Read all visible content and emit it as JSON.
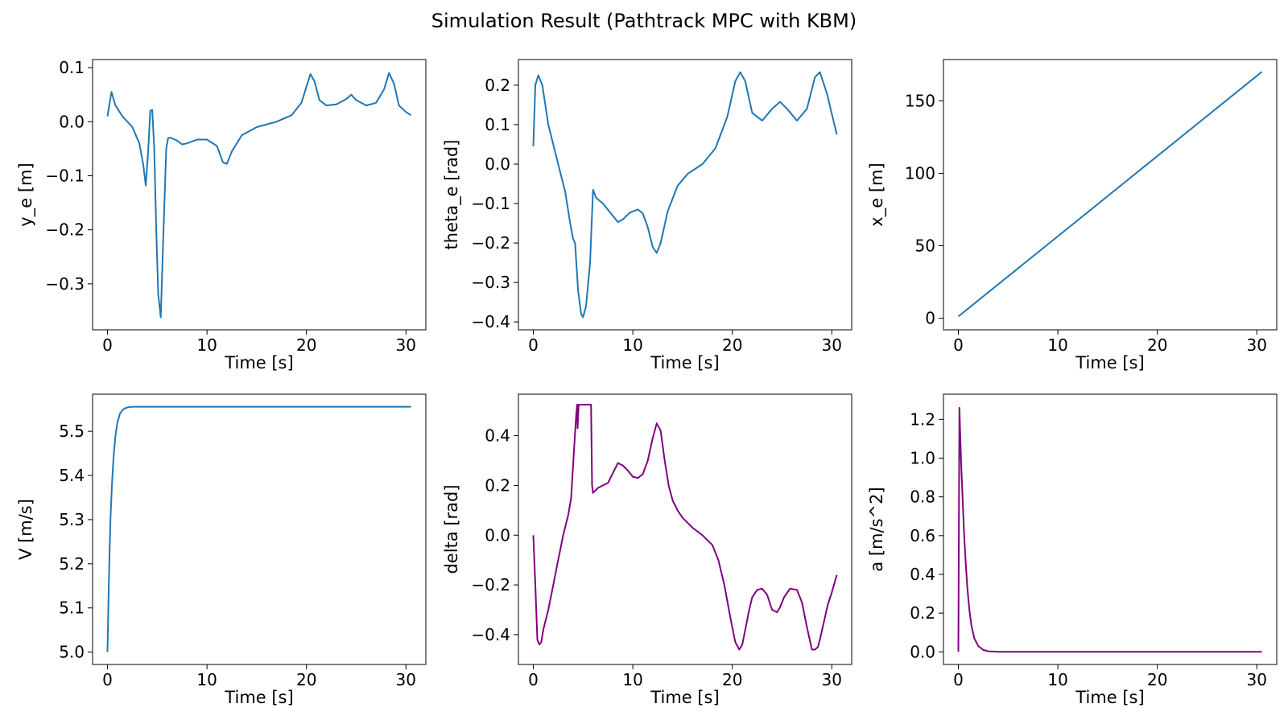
{
  "figure": {
    "title": "Simulation Result (Pathtrack MPC with KBM)"
  },
  "chart_data": [
    {
      "type": "line",
      "xlabel": "Time [s]",
      "ylabel": "y_e [m]",
      "xlim": [
        -1.5,
        32.0
      ],
      "ylim": [
        -0.385,
        0.115
      ],
      "xticks": [
        0,
        10,
        20,
        30
      ],
      "yticks": [
        0.1,
        0.0,
        -0.1,
        -0.2,
        -0.3
      ],
      "ytick_labels": [
        "0.1",
        "0.0",
        "−0.1",
        "−0.2",
        "−0.3"
      ],
      "color": "#1f77b4",
      "grid": false,
      "x": [
        0,
        0.4,
        0.8,
        1.5,
        2.5,
        3.2,
        3.6,
        3.85,
        4.1,
        4.3,
        4.5,
        4.7,
        4.9,
        5.1,
        5.35,
        5.6,
        5.9,
        6.1,
        6.4,
        7.0,
        7.5,
        8.0,
        9.0,
        10.0,
        11.0,
        11.6,
        12.0,
        12.5,
        13.5,
        15.0,
        17.0,
        18.5,
        19.5,
        20.0,
        20.4,
        20.8,
        21.3,
        22.0,
        23.0,
        24.0,
        24.5,
        25.0,
        26.0,
        27.0,
        27.8,
        28.3,
        28.8,
        29.3,
        30.0,
        30.5
      ],
      "values": [
        0.01,
        0.055,
        0.03,
        0.01,
        -0.01,
        -0.04,
        -0.08,
        -0.118,
        -0.05,
        0.02,
        0.022,
        -0.05,
        -0.2,
        -0.32,
        -0.362,
        -0.22,
        -0.05,
        -0.03,
        -0.03,
        -0.035,
        -0.042,
        -0.04,
        -0.033,
        -0.033,
        -0.045,
        -0.075,
        -0.078,
        -0.055,
        -0.025,
        -0.01,
        0.0,
        0.012,
        0.035,
        0.065,
        0.088,
        0.075,
        0.04,
        0.03,
        0.032,
        0.042,
        0.05,
        0.04,
        0.03,
        0.035,
        0.06,
        0.09,
        0.07,
        0.03,
        0.018,
        0.012
      ]
    },
    {
      "type": "line",
      "xlabel": "Time [s]",
      "ylabel": "theta_e [rad]",
      "xlim": [
        -1.5,
        32.0
      ],
      "ylim": [
        -0.42,
        0.265
      ],
      "xticks": [
        0,
        10,
        20,
        30
      ],
      "yticks": [
        0.2,
        0.1,
        0.0,
        -0.1,
        -0.2,
        -0.3,
        -0.4
      ],
      "ytick_labels": [
        "0.2",
        "0.1",
        "0.0",
        "−0.1",
        "−0.2",
        "−0.3",
        "−0.4"
      ],
      "color": "#1f77b4",
      "grid": false,
      "x": [
        0,
        0.2,
        0.5,
        0.9,
        1.5,
        2.5,
        3.2,
        3.7,
        4.0,
        4.2,
        4.5,
        4.8,
        5.0,
        5.3,
        5.7,
        6.0,
        6.3,
        7.0,
        7.8,
        8.5,
        9.0,
        9.7,
        10.5,
        11.0,
        11.5,
        12.0,
        12.4,
        12.8,
        13.5,
        14.5,
        15.5,
        17.0,
        18.3,
        19.5,
        20.3,
        20.8,
        21.3,
        22.0,
        23.0,
        24.0,
        24.8,
        25.5,
        26.5,
        27.5,
        28.3,
        28.8,
        29.5,
        30.5
      ],
      "values": [
        0.045,
        0.2,
        0.225,
        0.2,
        0.1,
        0.0,
        -0.07,
        -0.15,
        -0.19,
        -0.2,
        -0.32,
        -0.38,
        -0.388,
        -0.36,
        -0.25,
        -0.065,
        -0.085,
        -0.1,
        -0.125,
        -0.147,
        -0.14,
        -0.123,
        -0.115,
        -0.125,
        -0.16,
        -0.21,
        -0.225,
        -0.2,
        -0.12,
        -0.055,
        -0.025,
        0.0,
        0.04,
        0.12,
        0.21,
        0.233,
        0.21,
        0.13,
        0.11,
        0.14,
        0.158,
        0.14,
        0.11,
        0.14,
        0.22,
        0.233,
        0.18,
        0.075
      ]
    },
    {
      "type": "line",
      "xlabel": "Time [s]",
      "ylabel": "x_e [m]",
      "xlim": [
        -1.5,
        32.0
      ],
      "ylim": [
        -8.0,
        178.5
      ],
      "xticks": [
        0,
        10,
        20,
        30
      ],
      "yticks": [
        150,
        100,
        50,
        0
      ],
      "ytick_labels": [
        "150",
        "100",
        "50",
        "0"
      ],
      "color": "#1f77b4",
      "grid": false,
      "x": [
        0,
        30.5
      ],
      "values": [
        1.2,
        170.0
      ]
    },
    {
      "type": "line",
      "xlabel": "Time [s]",
      "ylabel": "V [m/s]",
      "xlim": [
        -1.5,
        32.0
      ],
      "ylim": [
        4.972,
        5.584
      ],
      "xticks": [
        0,
        10,
        20,
        30
      ],
      "yticks": [
        5.5,
        5.4,
        5.3,
        5.2,
        5.1,
        5.0
      ],
      "ytick_labels": [
        "5.5",
        "5.4",
        "5.3",
        "5.2",
        "5.1",
        "5.0"
      ],
      "color": "#1f77b4",
      "grid": false,
      "x": [
        0,
        0.1,
        0.2,
        0.3,
        0.45,
        0.6,
        0.8,
        1.0,
        1.25,
        1.5,
        1.75,
        2.0,
        2.3,
        2.7,
        3.2,
        4.0,
        5.0,
        10.0,
        20.0,
        30.5
      ],
      "values": [
        5.0,
        5.12,
        5.22,
        5.3,
        5.38,
        5.44,
        5.49,
        5.52,
        5.54,
        5.548,
        5.552,
        5.554,
        5.555,
        5.5556,
        5.5556,
        5.5556,
        5.5556,
        5.5556,
        5.5556,
        5.5556
      ]
    },
    {
      "type": "line",
      "xlabel": "Time [s]",
      "ylabel": "delta [rad]",
      "xlim": [
        -1.5,
        32.0
      ],
      "ylim": [
        -0.52,
        0.567
      ],
      "xticks": [
        0,
        10,
        20,
        30
      ],
      "yticks": [
        0.4,
        0.2,
        0.0,
        -0.2,
        -0.4
      ],
      "ytick_labels": [
        "0.4",
        "0.2",
        "0.0",
        "−0.2",
        "−0.4"
      ],
      "color": "#800080",
      "grid": false,
      "x": [
        0,
        0.2,
        0.4,
        0.6,
        0.8,
        1.0,
        1.5,
        2.0,
        2.5,
        3.0,
        3.5,
        3.8,
        4.1,
        4.3,
        4.4,
        4.45,
        4.55,
        4.6,
        5.0,
        5.5,
        5.8,
        5.9,
        6.0,
        6.5,
        7.0,
        7.5,
        8.0,
        8.5,
        9.0,
        9.5,
        10.0,
        10.5,
        11.0,
        11.5,
        12.0,
        12.4,
        12.8,
        13.2,
        13.6,
        14.0,
        14.5,
        15.0,
        16.0,
        17.0,
        18.0,
        18.6,
        19.2,
        19.8,
        20.3,
        20.7,
        21.0,
        21.3,
        21.7,
        22.0,
        22.5,
        23.0,
        23.5,
        24.0,
        24.5,
        24.8,
        25.2,
        25.8,
        26.5,
        27.0,
        27.5,
        28.0,
        28.3,
        28.6,
        28.8,
        29.2,
        29.6,
        30.0,
        30.5
      ],
      "values": [
        0.0,
        -0.2,
        -0.42,
        -0.44,
        -0.43,
        -0.38,
        -0.3,
        -0.2,
        -0.1,
        0.0,
        0.08,
        0.15,
        0.35,
        0.48,
        0.525,
        0.43,
        0.525,
        0.525,
        0.525,
        0.525,
        0.525,
        0.2,
        0.17,
        0.19,
        0.2,
        0.21,
        0.25,
        0.29,
        0.28,
        0.26,
        0.235,
        0.23,
        0.245,
        0.3,
        0.39,
        0.45,
        0.42,
        0.3,
        0.2,
        0.14,
        0.1,
        0.07,
        0.03,
        0.0,
        -0.04,
        -0.1,
        -0.2,
        -0.33,
        -0.43,
        -0.46,
        -0.44,
        -0.38,
        -0.3,
        -0.25,
        -0.22,
        -0.215,
        -0.24,
        -0.3,
        -0.31,
        -0.29,
        -0.25,
        -0.215,
        -0.22,
        -0.27,
        -0.37,
        -0.46,
        -0.46,
        -0.45,
        -0.42,
        -0.35,
        -0.28,
        -0.23,
        -0.16
      ]
    },
    {
      "type": "line",
      "xlabel": "Time [s]",
      "ylabel": "a [m/s^2]",
      "xlim": [
        -1.5,
        32.0
      ],
      "ylim": [
        -0.065,
        1.33
      ],
      "xticks": [
        0,
        10,
        20,
        30
      ],
      "yticks": [
        1.2,
        1.0,
        0.8,
        0.6,
        0.4,
        0.2,
        0.0
      ],
      "ytick_labels": [
        "1.2",
        "1.0",
        "0.8",
        "0.6",
        "0.4",
        "0.2",
        "0.0"
      ],
      "color": "#800080",
      "grid": false,
      "x": [
        0,
        0.1,
        0.2,
        0.3,
        0.4,
        0.5,
        0.6,
        0.75,
        0.9,
        1.1,
        1.3,
        1.6,
        2.0,
        2.5,
        3.0,
        4.0,
        5.0,
        10.0,
        20.0,
        30.5
      ],
      "values": [
        0.0,
        1.26,
        1.1,
        0.95,
        0.82,
        0.7,
        0.58,
        0.45,
        0.33,
        0.22,
        0.14,
        0.07,
        0.03,
        0.01,
        0.003,
        0.0,
        0.0,
        0.0,
        0.0,
        0.0
      ]
    }
  ]
}
